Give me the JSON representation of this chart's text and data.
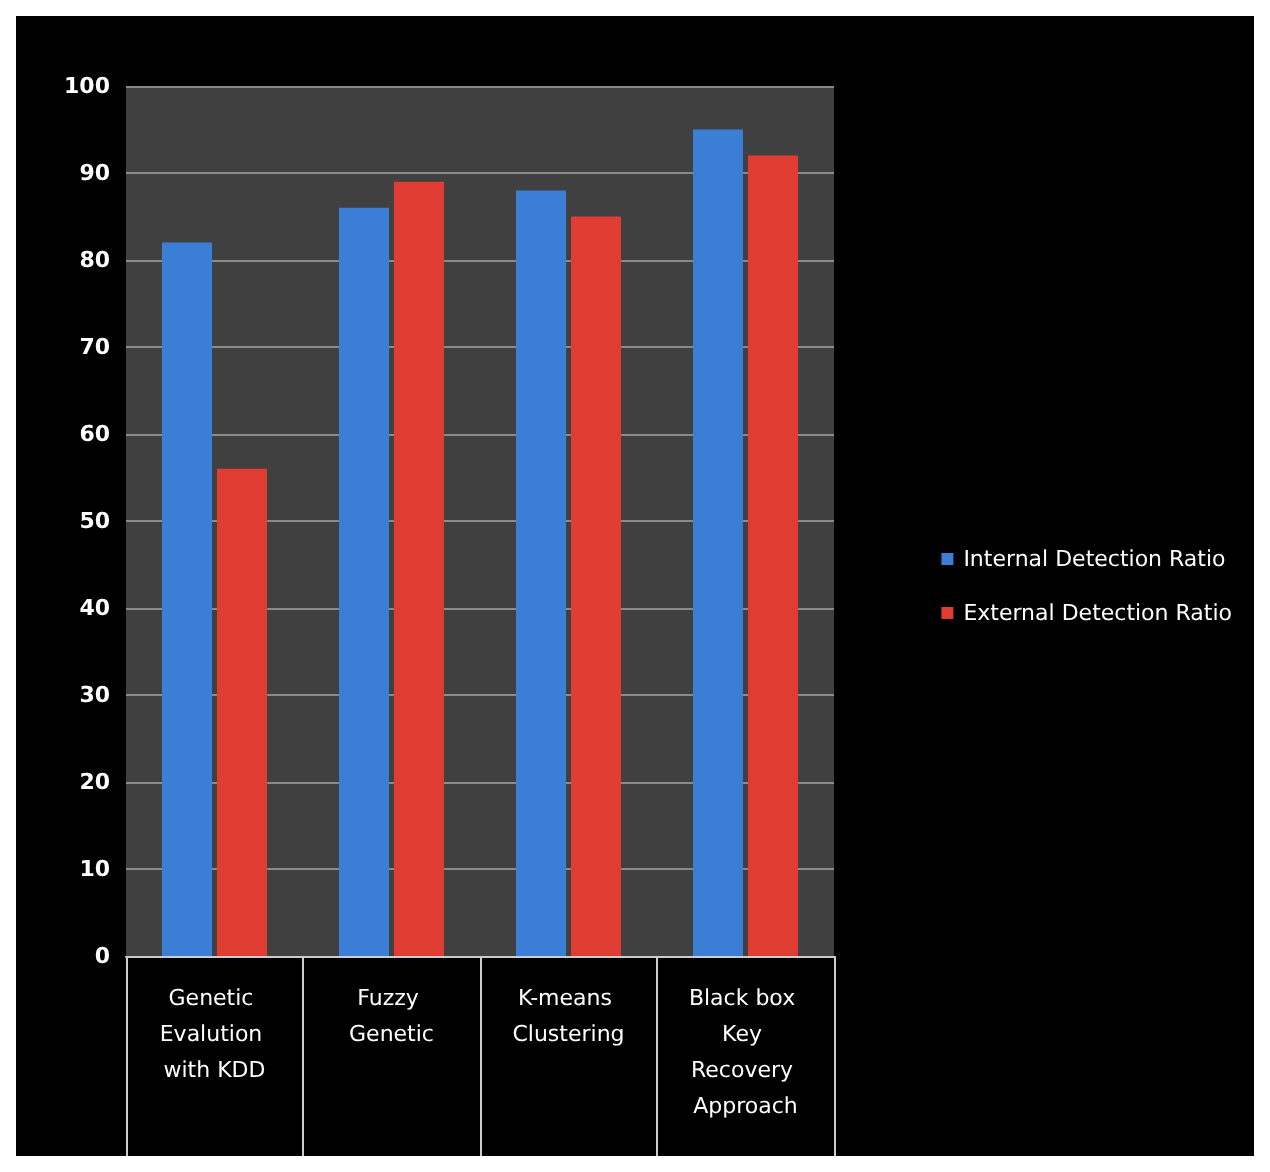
{
  "chart_data": {
    "type": "bar",
    "categories": [
      "Genetic Evalution with KDD",
      "Fuzzy Genetic",
      "K-means Clustering",
      "Black box Key Recovery Approach"
    ],
    "series": [
      {
        "name": "Internal Detection Ratio",
        "color": "#3a7fd5",
        "values": [
          82,
          86,
          88,
          95
        ]
      },
      {
        "name": "External Detection Ratio",
        "color": "#e03c31",
        "values": [
          56,
          89,
          85,
          92
        ]
      }
    ],
    "ylim": [
      0,
      100
    ],
    "yticks": [
      0,
      10,
      20,
      30,
      40,
      50,
      60,
      70,
      80,
      90,
      100
    ],
    "grid": "y",
    "legend": "right"
  }
}
